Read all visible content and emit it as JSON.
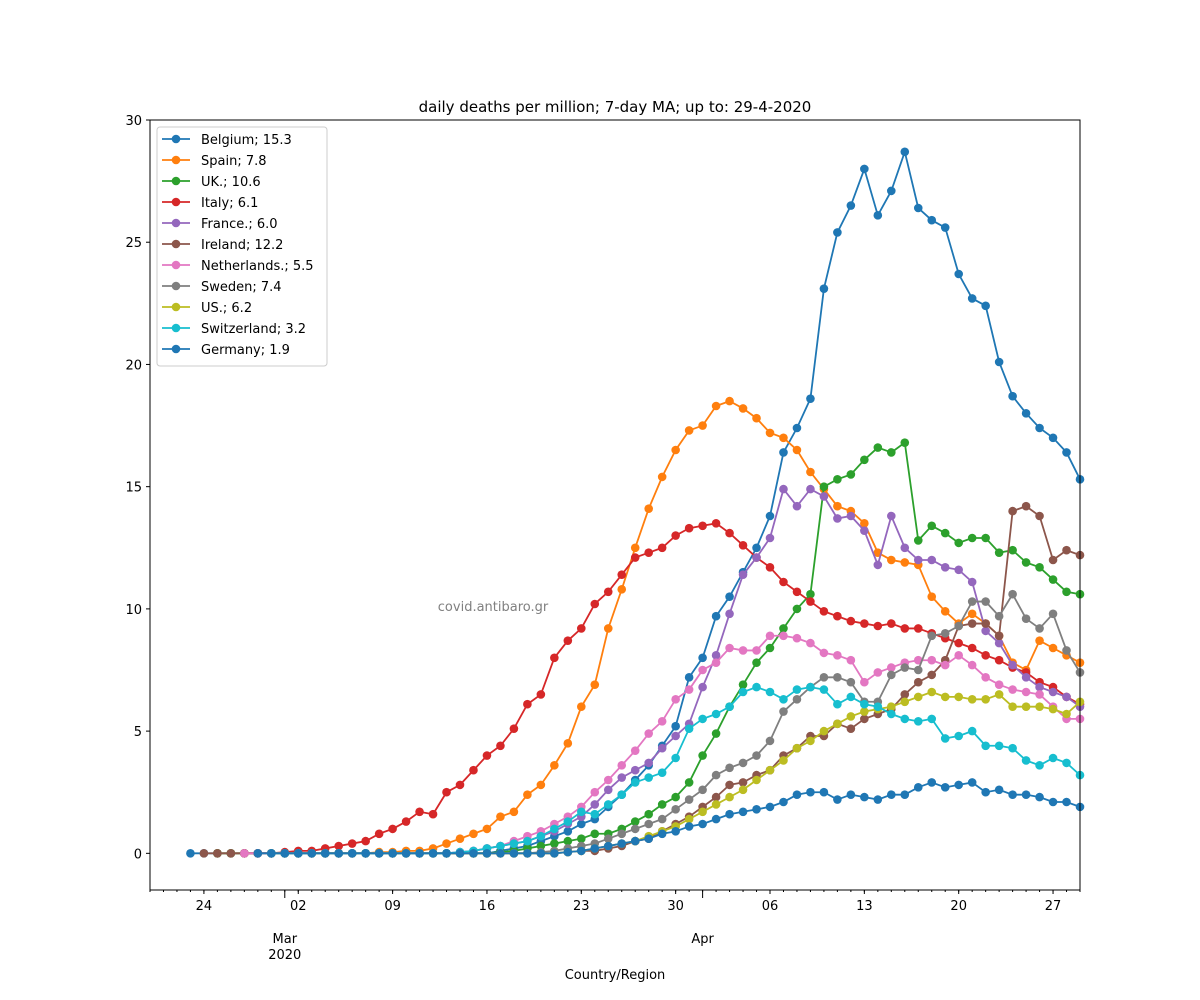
{
  "chart_data": {
    "type": "line",
    "title": "daily deaths per million; 7-day MA; up to: 29-4-2020",
    "xlabel": "Country/Region",
    "ylabel": "",
    "watermark": "covid.antibaro.gr",
    "ylim": [
      -1.5,
      30
    ],
    "yticks": [
      0,
      5,
      10,
      15,
      20,
      25,
      30
    ],
    "x_start": "2020-02-26",
    "x_end": "2020-04-29",
    "xlim_dates": [
      "2020-02-20",
      "2020-04-29"
    ],
    "x_major_ticks": [
      {
        "date": "2020-02-24",
        "label": "24"
      },
      {
        "date": "2020-03-02",
        "label": "02"
      },
      {
        "date": "2020-03-09",
        "label": "09"
      },
      {
        "date": "2020-03-16",
        "label": "16"
      },
      {
        "date": "2020-03-23",
        "label": "23"
      },
      {
        "date": "2020-03-30",
        "label": "30"
      },
      {
        "date": "2020-04-06",
        "label": "06"
      },
      {
        "date": "2020-04-13",
        "label": "13"
      },
      {
        "date": "2020-04-20",
        "label": "20"
      },
      {
        "date": "2020-04-27",
        "label": "27"
      }
    ],
    "x_month_labels": [
      {
        "date": "2020-03-01",
        "label": "Mar",
        "sublabel": "2020"
      },
      {
        "date": "2020-04-01",
        "label": "Apr",
        "sublabel": ""
      }
    ],
    "grid": false,
    "legend_position": "top-left",
    "series": [
      {
        "name": "Belgium; 15.3",
        "color": "#1f77b4",
        "values": [
          0,
          0,
          0,
          0,
          0,
          0,
          0,
          0,
          0,
          0,
          0,
          0,
          0,
          0,
          0,
          0,
          0,
          0,
          0,
          0,
          0,
          0,
          0,
          0.1,
          0.2,
          0.3,
          0.5,
          0.7,
          0.9,
          1.2,
          1.4,
          1.9,
          2.4,
          3.0,
          3.6,
          4.4,
          5.2,
          7.2,
          8.0,
          9.7,
          10.5,
          11.5,
          12.5,
          13.8,
          16.4,
          17.4,
          18.6,
          23.1,
          25.4,
          26.5,
          28.0,
          26.1,
          27.1,
          28.7,
          26.4,
          25.9,
          25.6,
          23.7,
          22.7,
          22.4,
          20.1,
          18.7,
          18.0,
          17.4,
          17.0,
          16.4,
          15.3
        ]
      },
      {
        "name": "Spain; 7.8",
        "color": "#ff7f0e",
        "values": [
          0,
          0,
          0,
          0,
          0,
          0,
          0,
          0,
          0,
          0,
          0,
          0,
          0.05,
          0.05,
          0.1,
          0.1,
          0.2,
          0.4,
          0.6,
          0.8,
          1.0,
          1.5,
          1.7,
          2.4,
          2.8,
          3.6,
          4.5,
          6.0,
          6.9,
          9.2,
          10.8,
          12.5,
          14.1,
          15.4,
          16.5,
          17.3,
          17.5,
          18.3,
          18.5,
          18.2,
          17.8,
          17.2,
          17.0,
          16.5,
          15.6,
          14.9,
          14.2,
          14.0,
          13.5,
          12.3,
          12.0,
          11.9,
          11.8,
          10.5,
          9.9,
          9.4,
          9.8,
          9.4,
          8.9,
          7.8,
          7.5,
          8.7,
          8.4,
          8.1,
          7.8
        ]
      },
      {
        "name": "UK.; 10.6",
        "color": "#2ca02c",
        "values": [
          0,
          0,
          0,
          0,
          0,
          0,
          0,
          0,
          0,
          0,
          0,
          0,
          0,
          0,
          0,
          0,
          0,
          0,
          0,
          0,
          0,
          0.05,
          0.1,
          0.2,
          0.3,
          0.4,
          0.5,
          0.6,
          0.8,
          0.8,
          1.0,
          1.3,
          1.6,
          2.0,
          2.3,
          2.9,
          4.0,
          4.9,
          6.0,
          6.9,
          7.8,
          8.4,
          9.2,
          10.0,
          10.6,
          15.0,
          15.3,
          15.5,
          16.1,
          16.6,
          16.4,
          16.8,
          12.8,
          13.4,
          13.1,
          12.7,
          12.9,
          12.9,
          12.3,
          12.4,
          11.9,
          11.7,
          11.2,
          10.7,
          10.6
        ]
      },
      {
        "name": "Italy; 6.1",
        "color": "#d62728",
        "values": [
          0,
          0,
          0,
          0.05,
          0.1,
          0.1,
          0.2,
          0.3,
          0.4,
          0.5,
          0.8,
          1.0,
          1.3,
          1.7,
          1.6,
          2.5,
          2.8,
          3.4,
          4.0,
          4.4,
          5.1,
          6.1,
          6.5,
          8.0,
          8.7,
          9.2,
          10.2,
          10.7,
          11.4,
          12.1,
          12.3,
          12.5,
          13.0,
          13.3,
          13.4,
          13.5,
          13.1,
          12.6,
          12.1,
          11.7,
          11.1,
          10.7,
          10.3,
          9.9,
          9.7,
          9.5,
          9.4,
          9.3,
          9.4,
          9.2,
          9.2,
          9.0,
          8.8,
          8.6,
          8.4,
          8.1,
          7.9,
          7.6,
          7.4,
          7.0,
          6.8,
          6.4,
          6.1
        ]
      },
      {
        "name": "France.; 6.0",
        "color": "#9467bd",
        "values": [
          0,
          0,
          0,
          0,
          0,
          0,
          0,
          0,
          0,
          0,
          0,
          0,
          0,
          0,
          0,
          0.05,
          0.1,
          0.2,
          0.3,
          0.4,
          0.5,
          0.7,
          0.9,
          1.2,
          1.5,
          2.0,
          2.6,
          3.1,
          3.4,
          3.7,
          4.3,
          4.8,
          5.3,
          6.8,
          8.1,
          9.8,
          11.4,
          12.1,
          12.9,
          14.9,
          14.2,
          14.9,
          14.6,
          13.7,
          13.8,
          13.2,
          11.8,
          13.8,
          12.5,
          12.0,
          12.0,
          11.7,
          11.6,
          11.1,
          9.1,
          8.6,
          7.7,
          7.2,
          6.8,
          6.6,
          6.4,
          6.0
        ]
      },
      {
        "name": "Ireland; 12.2",
        "color": "#8c564b",
        "values": [
          0,
          0,
          0,
          0,
          0,
          0,
          0,
          0,
          0,
          0,
          0,
          0,
          0,
          0,
          0,
          0,
          0,
          0,
          0,
          0,
          0,
          0,
          0,
          0,
          0,
          0,
          0,
          0.05,
          0.1,
          0.1,
          0.2,
          0.3,
          0.5,
          0.6,
          0.9,
          1.2,
          1.5,
          1.9,
          2.3,
          2.8,
          2.9,
          3.2,
          3.4,
          4.0,
          4.3,
          4.8,
          4.8,
          5.3,
          5.1,
          5.5,
          5.7,
          5.9,
          6.5,
          7.0,
          7.3,
          7.9,
          9.3,
          9.4,
          9.4,
          8.9,
          14.0,
          14.2,
          13.8,
          12.0,
          12.4,
          12.2
        ]
      },
      {
        "name": "Netherlands.; 5.5",
        "color": "#e377c2",
        "values": [
          0,
          0,
          0,
          0,
          0,
          0,
          0,
          0,
          0,
          0,
          0,
          0,
          0,
          0,
          0,
          0,
          0.05,
          0.1,
          0.2,
          0.3,
          0.5,
          0.7,
          0.9,
          1.2,
          1.5,
          1.9,
          2.5,
          3.0,
          3.6,
          4.2,
          4.9,
          5.4,
          6.3,
          6.7,
          7.5,
          7.8,
          8.4,
          8.3,
          8.3,
          8.9,
          8.9,
          8.8,
          8.6,
          8.2,
          8.1,
          7.9,
          7.0,
          7.4,
          7.6,
          7.8,
          7.9,
          7.9,
          7.7,
          8.1,
          7.7,
          7.2,
          6.9,
          6.7,
          6.6,
          6.5,
          6.0,
          5.5,
          5.5
        ]
      },
      {
        "name": "Sweden; 7.4",
        "color": "#7f7f7f",
        "values": [
          0,
          0,
          0,
          0,
          0,
          0,
          0,
          0,
          0,
          0,
          0,
          0,
          0,
          0,
          0,
          0,
          0,
          0,
          0,
          0,
          0,
          0.05,
          0.1,
          0.2,
          0.3,
          0.4,
          0.6,
          0.8,
          1.0,
          1.2,
          1.4,
          1.8,
          2.2,
          2.6,
          3.2,
          3.5,
          3.7,
          4.0,
          4.6,
          5.8,
          6.3,
          6.8,
          7.2,
          7.2,
          7.0,
          6.2,
          6.2,
          7.3,
          7.6,
          7.5,
          8.9,
          9.0,
          9.3,
          10.3,
          10.3,
          9.7,
          10.6,
          9.6,
          9.2,
          9.8,
          8.3,
          7.4
        ]
      },
      {
        "name": "US.; 6.2",
        "color": "#bcbd22",
        "values": [
          0,
          0,
          0,
          0,
          0,
          0,
          0,
          0,
          0,
          0,
          0,
          0,
          0,
          0,
          0,
          0,
          0,
          0,
          0,
          0,
          0,
          0,
          0.05,
          0.1,
          0.2,
          0.3,
          0.4,
          0.5,
          0.7,
          0.9,
          1.1,
          1.4,
          1.7,
          2.0,
          2.3,
          2.6,
          3.0,
          3.4,
          3.8,
          4.3,
          4.6,
          5.0,
          5.3,
          5.6,
          5.8,
          5.9,
          6.0,
          6.2,
          6.4,
          6.6,
          6.4,
          6.4,
          6.3,
          6.3,
          6.5,
          6.0,
          6.0,
          6.0,
          5.9,
          5.7,
          6.2
        ]
      },
      {
        "name": "Switzerland; 3.2",
        "color": "#17becf",
        "values": [
          0,
          0,
          0,
          0,
          0,
          0,
          0,
          0,
          0,
          0,
          0,
          0,
          0,
          0,
          0.05,
          0.1,
          0.2,
          0.3,
          0.4,
          0.5,
          0.7,
          1.0,
          1.3,
          1.7,
          1.6,
          2.0,
          2.4,
          2.9,
          3.1,
          3.3,
          3.9,
          5.1,
          5.5,
          5.7,
          6.0,
          6.6,
          6.8,
          6.6,
          6.3,
          6.7,
          6.8,
          6.7,
          6.1,
          6.4,
          6.1,
          6.0,
          5.7,
          5.5,
          5.4,
          5.5,
          4.7,
          4.8,
          5.0,
          4.4,
          4.4,
          4.3,
          3.8,
          3.6,
          3.9,
          3.7,
          3.2
        ]
      },
      {
        "name": "Germany; 1.9",
        "color": "#1f77b4",
        "values": [
          0,
          0,
          0,
          0,
          0,
          0,
          0,
          0,
          0,
          0,
          0,
          0,
          0,
          0,
          0,
          0,
          0,
          0,
          0,
          0,
          0,
          0,
          0,
          0.05,
          0.1,
          0.2,
          0.3,
          0.4,
          0.5,
          0.6,
          0.8,
          0.9,
          1.1,
          1.2,
          1.4,
          1.6,
          1.7,
          1.8,
          1.9,
          2.1,
          2.4,
          2.5,
          2.5,
          2.2,
          2.4,
          2.3,
          2.2,
          2.4,
          2.4,
          2.7,
          2.9,
          2.7,
          2.8,
          2.9,
          2.5,
          2.6,
          2.4,
          2.4,
          2.3,
          2.1,
          2.1,
          1.9
        ]
      }
    ]
  }
}
